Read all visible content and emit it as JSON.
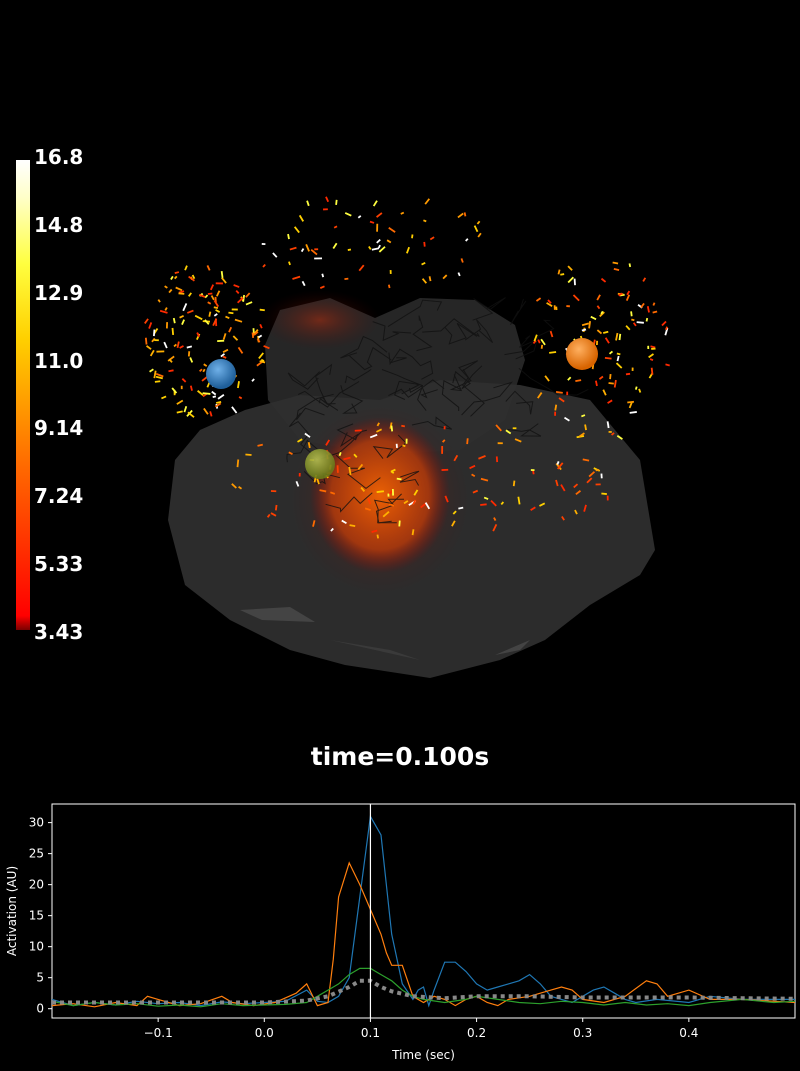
{
  "colorbar": {
    "ticks": [
      "16.8",
      "14.8",
      "12.9",
      "11.0",
      "9.14",
      "7.24",
      "5.33",
      "3.43"
    ],
    "min": 3.43,
    "max": 16.8,
    "colormap": "hot"
  },
  "time_label": "time=0.100s",
  "sources": [
    {
      "color": "#1f77b4"
    },
    {
      "color": "#ff7f0e"
    },
    {
      "color": "#8a9a2a"
    }
  ],
  "chart_data": {
    "type": "line",
    "xlabel": "Time (sec)",
    "ylabel": "Activation (AU)",
    "xlim": [
      -0.2,
      0.5
    ],
    "ylim": [
      -1.5,
      33
    ],
    "xticks": [
      -0.1,
      0.0,
      0.1,
      0.2,
      0.3,
      0.4
    ],
    "xtick_labels": [
      "−0.1",
      "0.0",
      "0.1",
      "0.2",
      "0.3",
      "0.4"
    ],
    "yticks": [
      0,
      5,
      10,
      15,
      20,
      25,
      30
    ],
    "current_time": 0.1,
    "series": [
      {
        "color": "#1f77b4",
        "style": "solid",
        "points": [
          [
            -0.2,
            1.5
          ],
          [
            -0.18,
            0.5
          ],
          [
            -0.16,
            1.0
          ],
          [
            -0.14,
            0.6
          ],
          [
            -0.12,
            1.2
          ],
          [
            -0.1,
            0.8
          ],
          [
            -0.08,
            1.0
          ],
          [
            -0.06,
            0.5
          ],
          [
            -0.04,
            1.1
          ],
          [
            -0.02,
            0.8
          ],
          [
            0.0,
            1.0
          ],
          [
            0.02,
            1.2
          ],
          [
            0.04,
            3.0
          ],
          [
            0.05,
            1.2
          ],
          [
            0.06,
            1.0
          ],
          [
            0.07,
            2.0
          ],
          [
            0.08,
            5.0
          ],
          [
            0.09,
            18.0
          ],
          [
            0.1,
            31.0
          ],
          [
            0.11,
            28.0
          ],
          [
            0.12,
            12.0
          ],
          [
            0.13,
            4.0
          ],
          [
            0.14,
            1.5
          ],
          [
            0.145,
            3.0
          ],
          [
            0.15,
            3.5
          ],
          [
            0.155,
            0.5
          ],
          [
            0.16,
            3.0
          ],
          [
            0.17,
            7.5
          ],
          [
            0.18,
            7.5
          ],
          [
            0.19,
            6.0
          ],
          [
            0.2,
            4.0
          ],
          [
            0.21,
            3.0
          ],
          [
            0.22,
            3.5
          ],
          [
            0.23,
            4.0
          ],
          [
            0.24,
            4.5
          ],
          [
            0.25,
            5.5
          ],
          [
            0.26,
            4.0
          ],
          [
            0.27,
            2.0
          ],
          [
            0.28,
            1.5
          ],
          [
            0.29,
            1.0
          ],
          [
            0.3,
            2.0
          ],
          [
            0.31,
            3.0
          ],
          [
            0.32,
            3.5
          ],
          [
            0.33,
            2.5
          ],
          [
            0.34,
            1.5
          ],
          [
            0.35,
            1.0
          ],
          [
            0.37,
            1.5
          ],
          [
            0.4,
            1.0
          ],
          [
            0.42,
            2.0
          ],
          [
            0.45,
            1.5
          ],
          [
            0.5,
            1.5
          ]
        ]
      },
      {
        "color": "#ff7f0e",
        "style": "solid",
        "points": [
          [
            -0.2,
            0.5
          ],
          [
            -0.18,
            0.8
          ],
          [
            -0.16,
            0.3
          ],
          [
            -0.14,
            1.0
          ],
          [
            -0.12,
            0.5
          ],
          [
            -0.11,
            2.0
          ],
          [
            -0.1,
            1.5
          ],
          [
            -0.08,
            0.5
          ],
          [
            -0.06,
            0.8
          ],
          [
            -0.04,
            2.0
          ],
          [
            -0.03,
            1.0
          ],
          [
            -0.01,
            0.5
          ],
          [
            0.01,
            1.0
          ],
          [
            0.03,
            2.5
          ],
          [
            0.04,
            4.0
          ],
          [
            0.05,
            0.5
          ],
          [
            0.06,
            1.0
          ],
          [
            0.065,
            8.0
          ],
          [
            0.07,
            18.0
          ],
          [
            0.08,
            23.5
          ],
          [
            0.09,
            20.0
          ],
          [
            0.1,
            16.0
          ],
          [
            0.11,
            12.0
          ],
          [
            0.115,
            9.0
          ],
          [
            0.12,
            7.0
          ],
          [
            0.13,
            7.0
          ],
          [
            0.14,
            2.0
          ],
          [
            0.15,
            1.0
          ],
          [
            0.16,
            2.0
          ],
          [
            0.17,
            1.5
          ],
          [
            0.18,
            0.5
          ],
          [
            0.19,
            1.5
          ],
          [
            0.2,
            2.0
          ],
          [
            0.21,
            1.0
          ],
          [
            0.22,
            0.5
          ],
          [
            0.23,
            1.5
          ],
          [
            0.25,
            2.0
          ],
          [
            0.27,
            3.0
          ],
          [
            0.28,
            3.5
          ],
          [
            0.29,
            3.0
          ],
          [
            0.3,
            1.5
          ],
          [
            0.32,
            1.0
          ],
          [
            0.34,
            2.0
          ],
          [
            0.36,
            4.5
          ],
          [
            0.37,
            4.0
          ],
          [
            0.38,
            2.0
          ],
          [
            0.4,
            3.0
          ],
          [
            0.42,
            1.5
          ],
          [
            0.45,
            1.5
          ],
          [
            0.5,
            1.0
          ]
        ]
      },
      {
        "color": "#2ca02c",
        "style": "solid",
        "points": [
          [
            -0.2,
            1.2
          ],
          [
            -0.18,
            0.5
          ],
          [
            -0.16,
            1.0
          ],
          [
            -0.14,
            0.6
          ],
          [
            -0.12,
            0.8
          ],
          [
            -0.1,
            0.4
          ],
          [
            -0.08,
            0.6
          ],
          [
            -0.06,
            0.3
          ],
          [
            -0.04,
            0.8
          ],
          [
            -0.02,
            0.5
          ],
          [
            0.0,
            0.6
          ],
          [
            0.02,
            0.7
          ],
          [
            0.04,
            1.0
          ],
          [
            0.05,
            2.0
          ],
          [
            0.06,
            3.0
          ],
          [
            0.07,
            4.0
          ],
          [
            0.08,
            5.5
          ],
          [
            0.09,
            6.5
          ],
          [
            0.1,
            6.5
          ],
          [
            0.11,
            5.5
          ],
          [
            0.12,
            4.5
          ],
          [
            0.13,
            3.0
          ],
          [
            0.14,
            2.0
          ],
          [
            0.15,
            1.5
          ],
          [
            0.17,
            1.0
          ],
          [
            0.19,
            1.5
          ],
          [
            0.2,
            2.0
          ],
          [
            0.22,
            1.5
          ],
          [
            0.24,
            1.0
          ],
          [
            0.26,
            0.8
          ],
          [
            0.28,
            1.2
          ],
          [
            0.3,
            1.0
          ],
          [
            0.32,
            0.6
          ],
          [
            0.34,
            1.0
          ],
          [
            0.36,
            0.6
          ],
          [
            0.38,
            0.8
          ],
          [
            0.4,
            0.5
          ],
          [
            0.42,
            1.0
          ],
          [
            0.45,
            1.5
          ],
          [
            0.48,
            1.0
          ],
          [
            0.5,
            1.2
          ]
        ]
      },
      {
        "color": "#888888",
        "style": "dotted",
        "points": [
          [
            -0.2,
            1.0
          ],
          [
            0.0,
            1.0
          ],
          [
            0.04,
            1.3
          ],
          [
            0.06,
            2.0
          ],
          [
            0.08,
            3.5
          ],
          [
            0.09,
            4.5
          ],
          [
            0.1,
            4.5
          ],
          [
            0.11,
            3.5
          ],
          [
            0.12,
            2.8
          ],
          [
            0.14,
            2.0
          ],
          [
            0.17,
            1.7
          ],
          [
            0.2,
            2.0
          ],
          [
            0.25,
            2.0
          ],
          [
            0.3,
            1.8
          ],
          [
            0.35,
            1.8
          ],
          [
            0.4,
            1.8
          ],
          [
            0.45,
            1.7
          ],
          [
            0.5,
            1.6
          ]
        ]
      }
    ]
  }
}
